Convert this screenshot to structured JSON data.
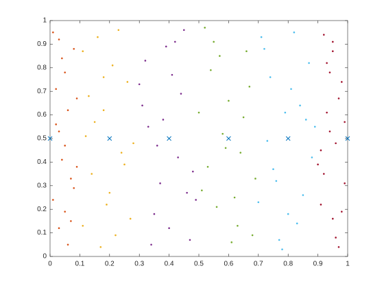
{
  "chart_data": {
    "type": "scatter",
    "xlim": [
      0,
      1
    ],
    "ylim": [
      0,
      1
    ],
    "xticks": [
      0,
      0.1,
      0.2,
      0.3,
      0.4,
      0.5,
      0.6,
      0.7,
      0.8,
      0.9,
      1
    ],
    "yticks": [
      0,
      0.1,
      0.2,
      0.3,
      0.4,
      0.5,
      0.6,
      0.7,
      0.8,
      0.9,
      1
    ],
    "grid": false,
    "series": [
      {
        "color": "#D95319",
        "marker": "dot",
        "x": [
          0.01,
          0.03,
          0.05,
          0.07,
          0.02,
          0.08,
          0.04,
          0.06,
          0.09,
          0.01,
          0.03,
          0.05,
          0.07,
          0.02,
          0.08,
          0.04,
          0.06,
          0.09,
          0.05,
          0.03
        ],
        "values": [
          0.95,
          0.12,
          0.78,
          0.33,
          0.56,
          0.88,
          0.41,
          0.05,
          0.67,
          0.24,
          0.92,
          0.47,
          0.15,
          0.71,
          0.29,
          0.84,
          0.62,
          0.38,
          0.19,
          0.53
        ]
      },
      {
        "color": "#EDB120",
        "marker": "dot",
        "x": [
          0.11,
          0.14,
          0.18,
          0.22,
          0.26,
          0.12,
          0.16,
          0.2,
          0.24,
          0.27,
          0.13,
          0.17,
          0.21,
          0.25,
          0.15,
          0.19,
          0.23,
          0.11,
          0.28,
          0.18
        ],
        "values": [
          0.87,
          0.35,
          0.62,
          0.09,
          0.74,
          0.51,
          0.93,
          0.27,
          0.44,
          0.16,
          0.68,
          0.04,
          0.81,
          0.39,
          0.57,
          0.22,
          0.96,
          0.13,
          0.48,
          0.76
        ]
      },
      {
        "color": "#7E2F8E",
        "marker": "dot",
        "x": [
          0.31,
          0.35,
          0.39,
          0.43,
          0.47,
          0.33,
          0.37,
          0.41,
          0.45,
          0.49,
          0.32,
          0.36,
          0.4,
          0.44,
          0.48,
          0.34,
          0.38,
          0.42,
          0.46,
          0.3
        ],
        "values": [
          0.64,
          0.18,
          0.89,
          0.42,
          0.07,
          0.55,
          0.31,
          0.77,
          0.96,
          0.24,
          0.83,
          0.47,
          0.12,
          0.69,
          0.36,
          0.05,
          0.58,
          0.91,
          0.27,
          0.73
        ]
      },
      {
        "color": "#77AC30",
        "marker": "dot",
        "x": [
          0.51,
          0.55,
          0.59,
          0.63,
          0.67,
          0.53,
          0.57,
          0.61,
          0.65,
          0.69,
          0.52,
          0.56,
          0.6,
          0.64,
          0.68,
          0.54,
          0.58,
          0.62,
          0.66,
          0.5
        ],
        "values": [
          0.28,
          0.91,
          0.46,
          0.13,
          0.72,
          0.38,
          0.85,
          0.06,
          0.59,
          0.33,
          0.97,
          0.21,
          0.66,
          0.44,
          0.09,
          0.79,
          0.52,
          0.25,
          0.87,
          0.61
        ]
      },
      {
        "color": "#4DBEEE",
        "marker": "dot",
        "x": [
          0.71,
          0.75,
          0.79,
          0.83,
          0.87,
          0.73,
          0.77,
          0.81,
          0.85,
          0.89,
          0.72,
          0.76,
          0.8,
          0.84,
          0.88,
          0.74,
          0.78,
          0.82,
          0.86,
          0.7
        ],
        "values": [
          0.93,
          0.37,
          0.61,
          0.14,
          0.82,
          0.49,
          0.07,
          0.71,
          0.26,
          0.55,
          0.88,
          0.32,
          0.18,
          0.64,
          0.42,
          0.76,
          0.03,
          0.95,
          0.58,
          0.23
        ]
      },
      {
        "color": "#A2142F",
        "marker": "dot",
        "x": [
          0.91,
          0.93,
          0.95,
          0.97,
          0.99,
          0.92,
          0.94,
          0.96,
          0.98,
          0.9,
          0.91,
          0.93,
          0.95,
          0.97,
          0.99,
          0.92,
          0.94,
          0.96,
          0.98,
          0.95
        ],
        "values": [
          0.45,
          0.82,
          0.16,
          0.67,
          0.31,
          0.94,
          0.53,
          0.08,
          0.74,
          0.39,
          0.22,
          0.61,
          0.87,
          0.04,
          0.57,
          0.35,
          0.78,
          0.48,
          0.19,
          0.91
        ]
      },
      {
        "color": "#0072BD",
        "marker": "x",
        "x": [
          0,
          0.2,
          0.4,
          0.6,
          0.8,
          1
        ],
        "values": [
          0.5,
          0.5,
          0.5,
          0.5,
          0.5,
          0.5
        ]
      }
    ]
  }
}
